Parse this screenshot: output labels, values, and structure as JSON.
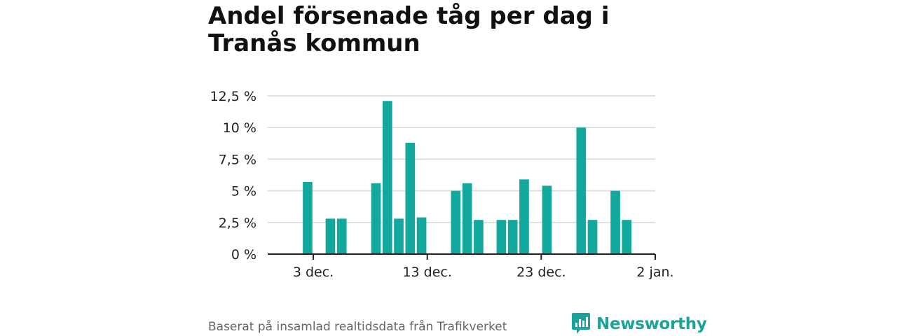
{
  "title": "Andel försenade tåg per dag i Tranås kommun",
  "source": "Baserat på insamlad realtidsdata från Trafikverket",
  "brand": "Newsworthy",
  "colors": {
    "bar": "#13a89e",
    "grid": "#d9d9d9",
    "axis": "#222222",
    "brand": "#1aa39a"
  },
  "chart_data": {
    "type": "bar",
    "title": "Andel försenade tåg per dag i Tranås kommun",
    "xlabel": "",
    "ylabel": "",
    "ylim": [
      0,
      12.5
    ],
    "yticks": [
      0,
      2.5,
      5,
      7.5,
      10,
      12.5
    ],
    "ytick_labels": [
      "0 %",
      "2,5 %",
      "5 %",
      "7,5 %",
      "10 %",
      "12,5 %"
    ],
    "xticks": [
      {
        "date": "2023-12-03",
        "label": "3 dec."
      },
      {
        "date": "2023-12-13",
        "label": "13 dec."
      },
      {
        "date": "2023-12-23",
        "label": "23 dec."
      },
      {
        "date": "2024-01-02",
        "label": "2 jan."
      }
    ],
    "x_range": [
      "2023-11-29",
      "2024-01-02"
    ],
    "grid": true,
    "points": [
      {
        "date": "2023-12-02",
        "value": 5.7
      },
      {
        "date": "2023-12-04",
        "value": 2.8
      },
      {
        "date": "2023-12-05",
        "value": 2.8
      },
      {
        "date": "2023-12-08",
        "value": 5.6
      },
      {
        "date": "2023-12-09",
        "value": 12.1
      },
      {
        "date": "2023-12-10",
        "value": 2.8
      },
      {
        "date": "2023-12-11",
        "value": 8.8
      },
      {
        "date": "2023-12-12",
        "value": 2.9
      },
      {
        "date": "2023-12-15",
        "value": 5.0
      },
      {
        "date": "2023-12-16",
        "value": 5.6
      },
      {
        "date": "2023-12-17",
        "value": 2.7
      },
      {
        "date": "2023-12-19",
        "value": 2.7
      },
      {
        "date": "2023-12-20",
        "value": 2.7
      },
      {
        "date": "2023-12-21",
        "value": 5.9
      },
      {
        "date": "2023-12-23",
        "value": 5.4
      },
      {
        "date": "2023-12-26",
        "value": 10.0
      },
      {
        "date": "2023-12-27",
        "value": 2.7
      },
      {
        "date": "2023-12-29",
        "value": 5.0
      },
      {
        "date": "2023-12-30",
        "value": 2.7
      }
    ]
  }
}
